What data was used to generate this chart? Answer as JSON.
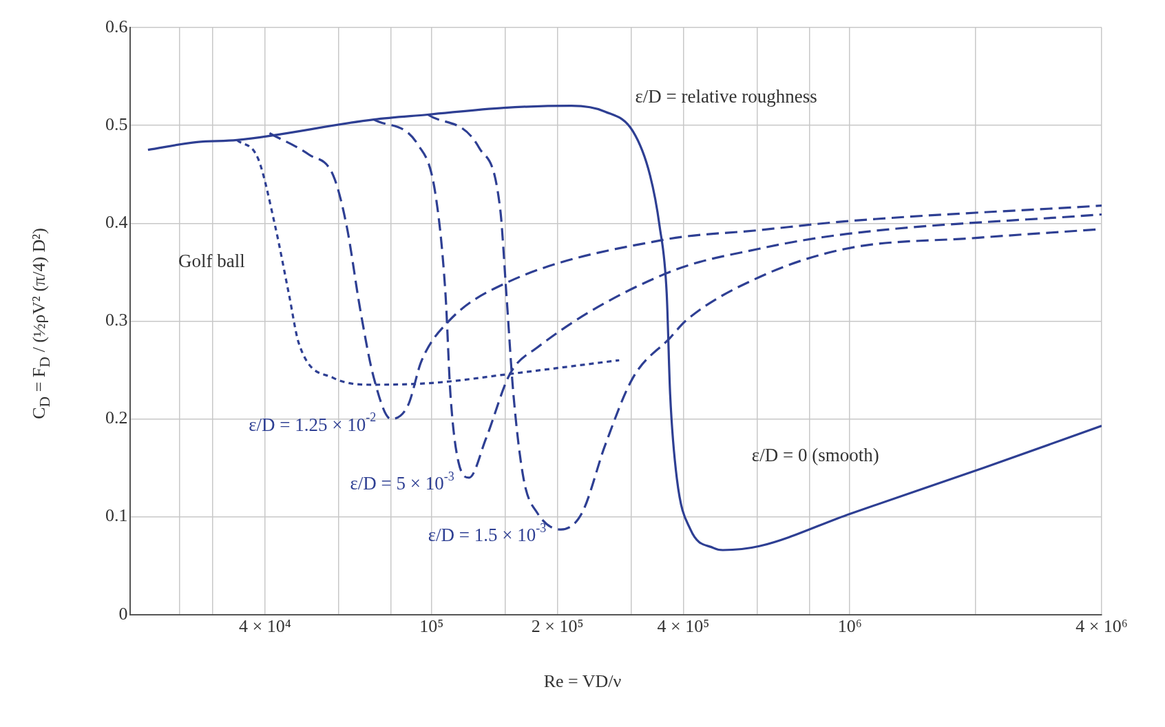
{
  "chart_data": {
    "type": "line",
    "xlabel": "Re = VD/ν",
    "ylabel": "C$_{D}$ = F$_{D}$ / (½ρV² (π/4) D²)",
    "log": "x",
    "grid": true,
    "legend": false,
    "marker": "none",
    "xlim": [
      19000,
      4000000
    ],
    "xticks": [
      {
        "value": 25000,
        "label": null
      },
      {
        "value": 30000,
        "label": null
      },
      {
        "value": 40000,
        "label": "4 × 10⁴"
      },
      {
        "value": 60000,
        "label": null
      },
      {
        "value": 80000,
        "label": null
      },
      {
        "value": 100000,
        "label": "10⁵"
      },
      {
        "value": 150000,
        "label": null
      },
      {
        "value": 200000,
        "label": "2 × 10⁵"
      },
      {
        "value": 300000,
        "label": null
      },
      {
        "value": 400000,
        "label": "4 × 10⁵"
      },
      {
        "value": 600000,
        "label": null
      },
      {
        "value": 800000,
        "label": null
      },
      {
        "value": 1000000,
        "label": "10⁶"
      },
      {
        "value": 2000000,
        "label": null
      },
      {
        "value": 4000000,
        "label": "4 × 10⁶"
      }
    ],
    "ylim": [
      0,
      0.6
    ],
    "yticks": [
      0,
      0.1,
      0.2,
      0.3,
      0.4,
      0.5,
      0.6
    ],
    "annotations": [
      "ε/D = relative roughness"
    ],
    "series": [
      {
        "name": "Golf ball",
        "color": "#2e3f93",
        "line_style": "dotted",
        "x": [
          34300,
          38500,
          42300,
          45600,
          48200,
          58200,
          72800,
          102000,
          154000,
          281000
        ],
        "values": [
          0.485,
          0.466,
          0.397,
          0.328,
          0.277,
          0.242,
          0.235,
          0.237,
          0.246,
          0.26
        ]
      },
      {
        "name": "ε/D = 1.25 × 10$^{-2}$",
        "color": "#2e3f93",
        "line_style": "dashed",
        "x": [
          41000,
          51000,
          58200,
          62700,
          67600,
          72800,
          80000,
          87900,
          94600,
          110000,
          149000,
          358000,
          608000,
          980000,
          4000000
        ],
        "values": [
          0.492,
          0.47,
          0.449,
          0.397,
          0.311,
          0.242,
          0.2,
          0.214,
          0.259,
          0.3,
          0.338,
          0.383,
          0.393,
          0.402,
          0.418
        ]
      },
      {
        "name": "ε/D = 5 × 10$^{-3}$",
        "color": "#2e3f93",
        "line_style": "dashed",
        "x": [
          72800,
          92900,
          102000,
          108000,
          111000,
          116000,
          123000,
          135000,
          154000,
          179000,
          365000,
          608000,
          980000,
          4000000
        ],
        "values": [
          0.506,
          0.48,
          0.432,
          0.328,
          0.225,
          0.156,
          0.14,
          0.18,
          0.246,
          0.273,
          0.349,
          0.374,
          0.389,
          0.409
        ]
      },
      {
        "name": "ε/D = 1.5 × 10$^{-3}$",
        "color": "#2e3f93",
        "line_style": "dashed",
        "x": [
          98000,
          130000,
          146000,
          151000,
          157000,
          166000,
          179000,
          204000,
          229000,
          260000,
          303000,
          372000,
          407000,
          608000,
          980000,
          2000000,
          4000000
        ],
        "values": [
          0.511,
          0.477,
          0.414,
          0.328,
          0.225,
          0.139,
          0.104,
          0.087,
          0.104,
          0.173,
          0.242,
          0.283,
          0.301,
          0.345,
          0.374,
          0.385,
          0.394
        ]
      },
      {
        "name": "ε/D = 0 (smooth)",
        "color": "#2e3f93",
        "line_style": "solid",
        "x": [
          21000,
          27500,
          34300,
          72800,
          98000,
          149000,
          216000,
          260000,
          303000,
          333000,
          351000,
          365000,
          372000,
          386000,
          416000,
          473000,
          497000,
          608000,
          1000000,
          2090000,
          4000000
        ],
        "values": [
          0.475,
          0.483,
          0.485,
          0.506,
          0.511,
          0.518,
          0.52,
          0.514,
          0.494,
          0.449,
          0.397,
          0.328,
          0.225,
          0.139,
          0.087,
          0.068,
          0.066,
          0.07,
          0.103,
          0.15,
          0.193
        ]
      }
    ]
  }
}
